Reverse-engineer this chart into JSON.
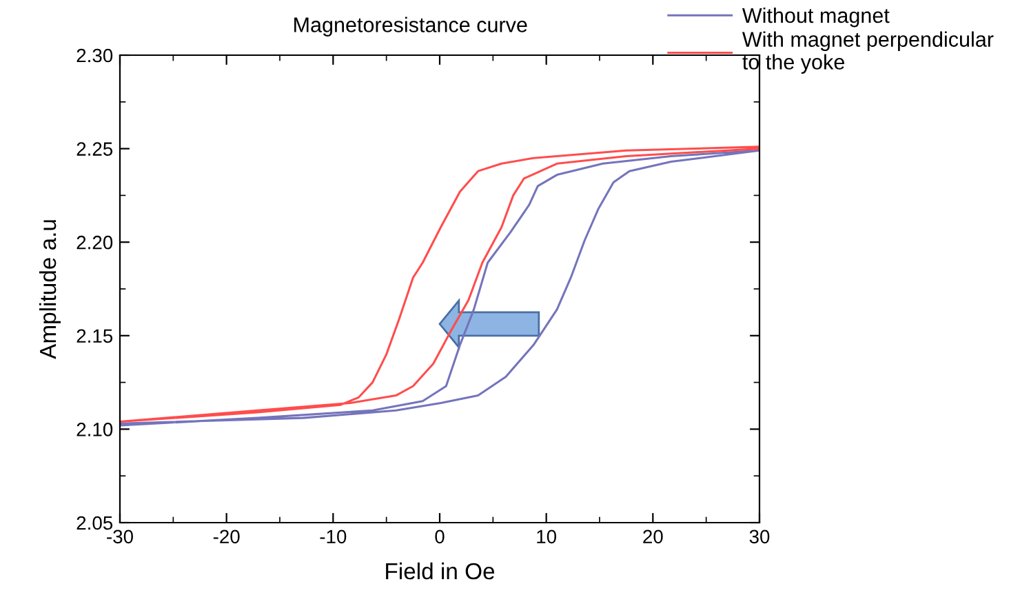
{
  "chart_data": {
    "type": "line",
    "title": "Magnetoresistance curve",
    "xlabel": "Field in Oe",
    "ylabel": "Amplitude a.u",
    "xlim": [
      -30,
      30
    ],
    "xticks": [
      -30,
      -20,
      -10,
      0,
      10,
      20,
      30
    ],
    "ylim": [
      2.05,
      2.3
    ],
    "yticks": [
      2.05,
      {
        "value": 2.1,
        "label": "2.10"
      },
      2.15,
      {
        "value": 2.2,
        "label": "2.20"
      },
      2.25,
      {
        "value": 2.3,
        "label": "2.30"
      }
    ],
    "grid": false,
    "legend": "top right",
    "marker": "none",
    "line_style": "solid",
    "series": [
      {
        "name": "Without magnet",
        "color": "#7474bc",
        "x": [
          -30,
          -12.8,
          -4.1,
          0.1,
          3.6,
          6.2,
          8.8,
          11.0,
          12.3,
          13.6,
          14.9,
          16.3,
          17.8,
          21.7,
          30,
          21.7,
          15.3,
          11,
          9.2,
          8.4,
          6.6,
          4.5,
          3.2,
          1.9,
          0.6,
          -1.6,
          -6.3,
          -17.1,
          -30
        ],
        "values": [
          2.103,
          2.106,
          2.11,
          2.114,
          2.118,
          2.128,
          2.145,
          2.164,
          2.181,
          2.201,
          2.218,
          2.232,
          2.238,
          2.243,
          2.249,
          2.246,
          2.242,
          2.236,
          2.23,
          2.22,
          2.205,
          2.189,
          2.164,
          2.145,
          2.123,
          2.115,
          2.11,
          2.106,
          2.102
        ]
      },
      {
        "name": "With magnet perpendicular\nto the yoke",
        "color": "#ff4d4d",
        "x": [
          30,
          17.5,
          8.8,
          5.8,
          3.6,
          1.9,
          0.1,
          -1.6,
          -2.5,
          -3.8,
          -5.0,
          -6.3,
          -7.6,
          -9.3,
          -17.1,
          -30,
          -17.1,
          -8.4,
          -4.1,
          -2.5,
          -0.6,
          1.0,
          2.7,
          4.0,
          5.8,
          6.9,
          7.9,
          11,
          17.5,
          30
        ],
        "values": [
          2.251,
          2.249,
          2.245,
          2.242,
          2.238,
          2.227,
          2.208,
          2.189,
          2.181,
          2.159,
          2.14,
          2.125,
          2.117,
          2.113,
          2.109,
          2.104,
          2.11,
          2.114,
          2.118,
          2.123,
          2.135,
          2.152,
          2.169,
          2.189,
          2.208,
          2.225,
          2.234,
          2.242,
          2.246,
          2.25
        ]
      }
    ]
  }
}
